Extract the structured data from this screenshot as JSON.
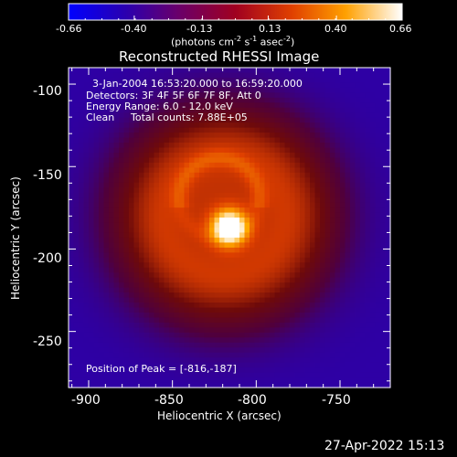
{
  "colorbar": {
    "ticks": [
      "-0.66",
      "-0.40",
      "-0.13",
      "0.13",
      "0.40",
      "0.66"
    ],
    "unit_label_pre": "(photons cm",
    "unit_sup1": "-2",
    "unit_mid": " s",
    "unit_sup2": "-1",
    "unit_mid2": " asec",
    "unit_sup3": "-2",
    "unit_end": ")"
  },
  "annotation": {
    "time": "3-Jan-2004 16:53:20.000 to 16:59:20.000",
    "detectors": "Detectors: 3F 4F 5F 6F 7F 8F, Att 0",
    "energy": "Energy Range: 6.0 - 12.0 keV",
    "method": "Clean",
    "counts": "Total counts: 7.88E+05",
    "peak": "Position of Peak = [-816,-187]"
  },
  "footer": {
    "date": "27-Apr-2022 15:13"
  },
  "chart_data": {
    "type": "heatmap",
    "title": "Reconstructed RHESSI Image",
    "xlabel": "Heliocentric X (arcsec)",
    "ylabel": "Heliocentric Y (arcsec)",
    "xlim": [
      -912,
      -720
    ],
    "ylim": [
      -284,
      -90
    ],
    "xticks": [
      -900,
      -850,
      -800,
      -750
    ],
    "yticks": [
      -100,
      -150,
      -200,
      -250
    ],
    "colorbar_range": [
      -0.66,
      0.66
    ],
    "colormap": "hot",
    "peak": [
      -816,
      -187
    ],
    "sources": [
      {
        "kind": "point",
        "x": -816,
        "y": -187,
        "value": 0.66,
        "sigma_arcsec": 7
      },
      {
        "kind": "ring",
        "x": -819,
        "y": -180,
        "radius_arcsec": 66,
        "value": 0.16
      },
      {
        "kind": "arc",
        "x": -822,
        "y": -169,
        "radius_arcsec": 24,
        "value": 0.1
      }
    ],
    "background_value": -0.42
  }
}
